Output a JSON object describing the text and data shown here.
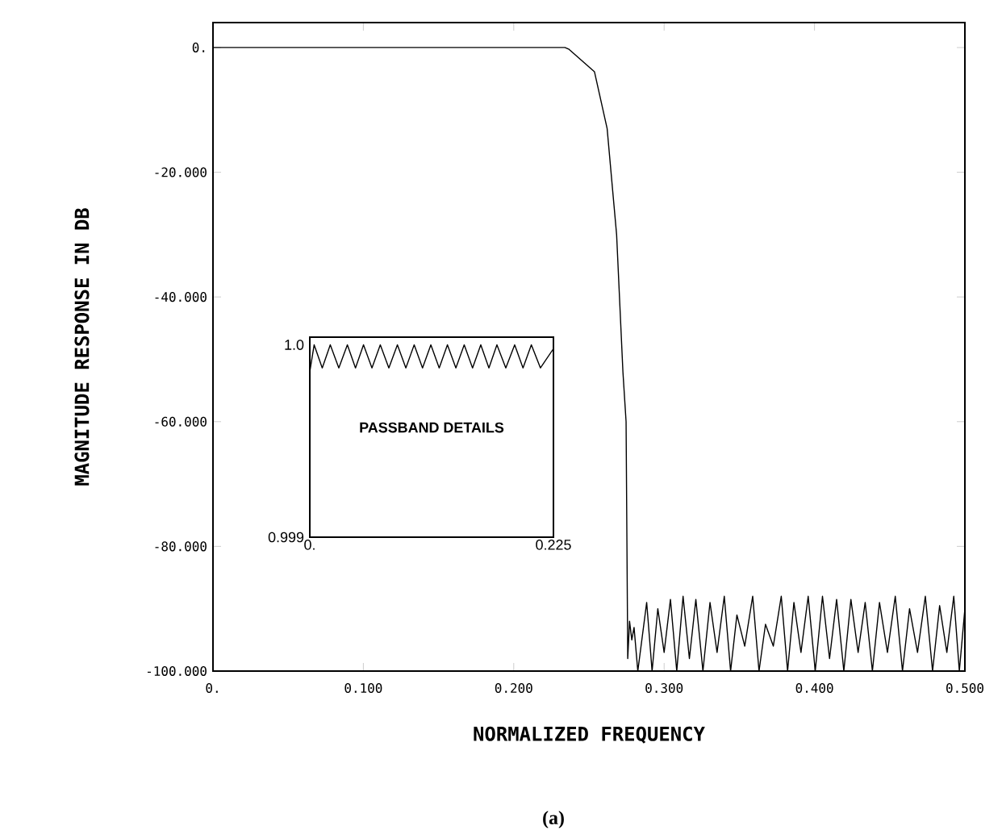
{
  "chart_data": [
    {
      "type": "line",
      "xlabel": "NORMALIZED FREQUENCY",
      "ylabel": "MAGNITUDE RESPONSE IN DB",
      "annotations": [
        "(a)"
      ],
      "xlim": [
        0,
        0.5
      ],
      "ylim": [
        -100,
        4
      ],
      "xticks": [
        {
          "value": 0,
          "label": "0."
        },
        {
          "value": 0.1,
          "label": "0.100"
        },
        {
          "value": 0.2,
          "label": "0.200"
        },
        {
          "value": 0.3,
          "label": "0.300"
        },
        {
          "value": 0.4,
          "label": "0.400"
        },
        {
          "value": 0.5,
          "label": "0.500"
        }
      ],
      "yticks": [
        {
          "value": 0,
          "label": "0."
        },
        {
          "value": -20,
          "label": "-20.000"
        },
        {
          "value": -40,
          "label": "-40.000"
        },
        {
          "value": -60,
          "label": "-60.000"
        },
        {
          "value": -80,
          "label": "-80.000"
        },
        {
          "value": -100,
          "label": "-100.000"
        }
      ],
      "series": [
        {
          "color": "#000000",
          "x": [
            0,
            0.234,
            0.2368,
            0.2537,
            0.2621,
            0.2684,
            0.2726,
            0.2747,
            0.2758,
            0.277,
            0.2785,
            0.28,
            0.2825,
            0.2884,
            0.292,
            0.2958,
            0.3,
            0.3042,
            0.3084,
            0.3126,
            0.3168,
            0.3211,
            0.3258,
            0.3305,
            0.3352,
            0.34,
            0.3442,
            0.3484,
            0.3536,
            0.3589,
            0.3631,
            0.3674,
            0.3726,
            0.3779,
            0.3821,
            0.3863,
            0.391,
            0.3958,
            0.4005,
            0.4053,
            0.41,
            0.4147,
            0.4195,
            0.4242,
            0.429,
            0.4337,
            0.4385,
            0.4432,
            0.4485,
            0.4537,
            0.4585,
            0.4632,
            0.4685,
            0.4737,
            0.4785,
            0.4832,
            0.488,
            0.4926,
            0.4963,
            0.5
          ],
          "values": [
            0,
            0,
            -0.3,
            -3.9,
            -13,
            -30,
            -52,
            -60,
            -98,
            -92,
            -95,
            -93,
            -100,
            -89,
            -100,
            -90,
            -97,
            -88.5,
            -100,
            -88,
            -98,
            -88.5,
            -100,
            -89,
            -97,
            -88,
            -100,
            -91,
            -96,
            -88,
            -100,
            -92.5,
            -96,
            -88,
            -100,
            -89,
            -97,
            -88,
            -100,
            -88,
            -98,
            -88.5,
            -100,
            -88.5,
            -97,
            -89,
            -100,
            -89,
            -97,
            -88,
            -100,
            -90,
            -97,
            -88,
            -100,
            -89.5,
            -97,
            -88,
            -100,
            -90
          ]
        }
      ]
    },
    {
      "type": "line",
      "title": "PASSBAND DETAILS",
      "xlim": [
        0,
        0.225
      ],
      "ylim": [
        0.999,
        1.00004
      ],
      "xticks": [
        {
          "value": 0,
          "label": "0."
        },
        0.225
      ],
      "yticks": [
        0.999,
        {
          "value": 1,
          "label": "1.0"
        }
      ],
      "series": [
        {
          "color": "#000000",
          "x": [
            0,
            0.004,
            0.0115,
            0.0189,
            0.0268,
            0.0347,
            0.0422,
            0.0496,
            0.0574,
            0.0651,
            0.073,
            0.0809,
            0.0887,
            0.0964,
            0.1041,
            0.1118,
            0.1195,
            0.1271,
            0.1349,
            0.1426,
            0.1503,
            0.1579,
            0.1654,
            0.1728,
            0.181,
            0.1892,
            0.1969,
            0.2046,
            0.213,
            0.225
          ],
          "values": [
            0.99986,
            1,
            0.99988,
            1,
            0.99988,
            1,
            0.99988,
            1,
            0.99988,
            1,
            0.99988,
            1,
            0.99988,
            1,
            0.99988,
            1,
            0.99988,
            1,
            0.99988,
            1,
            0.99988,
            1,
            0.99988,
            1,
            0.99988,
            1,
            0.99988,
            1,
            0.99988,
            0.99998
          ]
        }
      ]
    }
  ]
}
